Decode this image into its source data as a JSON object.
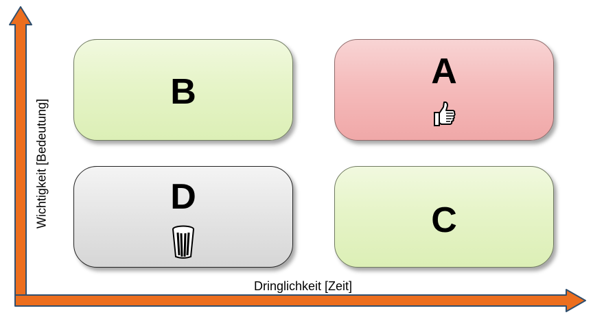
{
  "axes": {
    "x_label": "Dringlichkeit [Zeit]",
    "y_label": "Wichtigkeit [Bedeutung]",
    "arrow_color": "#ec6e1e",
    "arrow_outline": "#2f4f6f"
  },
  "quadrants": {
    "a": {
      "letter": "A",
      "color": "#f5bcbc",
      "icon": "thumbs-up-icon"
    },
    "b": {
      "letter": "B",
      "color": "#e6f4c8"
    },
    "c": {
      "letter": "C",
      "color": "#e6f4c8"
    },
    "d": {
      "letter": "D",
      "color": "#e4e4e4",
      "icon": "trash-can-icon"
    }
  }
}
